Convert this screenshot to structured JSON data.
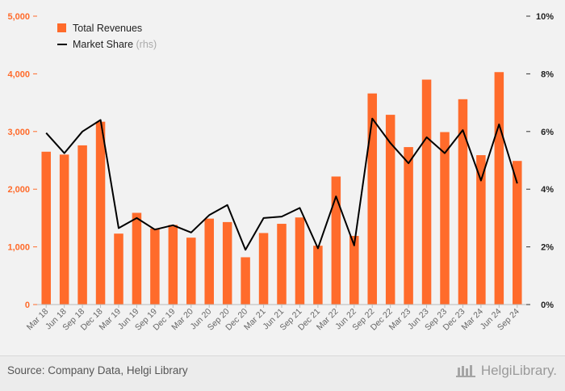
{
  "chart_data": {
    "type": "bar",
    "categories": [
      "Mar 18",
      "Jun 18",
      "Sep 18",
      "Dec 18",
      "Mar 19",
      "Jun 19",
      "Sep 19",
      "Dec 19",
      "Mar 20",
      "Jun 20",
      "Sep 20",
      "Dec 20",
      "Mar 21",
      "Jun 21",
      "Sep 21",
      "Dec 21",
      "Mar 22",
      "Jun 22",
      "Sep 22",
      "Dec 22",
      "Mar 23",
      "Jun 23",
      "Sep 23",
      "Dec 23",
      "Mar 24",
      "Jun 24",
      "Sep 24"
    ],
    "series": [
      {
        "name": "Total Revenues",
        "type": "bar",
        "axis": "left",
        "color": "#ff6b2b",
        "values": [
          2650,
          2600,
          2760,
          3170,
          1230,
          1590,
          1320,
          1380,
          1160,
          1490,
          1430,
          820,
          1240,
          1400,
          1510,
          1020,
          2220,
          1190,
          3660,
          3290,
          2730,
          3900,
          2990,
          3560,
          2590,
          4030,
          2490
        ]
      },
      {
        "name": "Market Share",
        "name_suffix": "(rhs)",
        "type": "line",
        "axis": "right",
        "color": "#000000",
        "values": [
          5.95,
          5.25,
          6.0,
          6.4,
          2.65,
          3.0,
          2.6,
          2.75,
          2.5,
          3.1,
          3.45,
          1.9,
          3.0,
          3.05,
          3.35,
          1.95,
          3.75,
          2.05,
          6.45,
          5.6,
          4.9,
          5.8,
          5.25,
          6.05,
          4.3,
          6.25,
          4.2
        ]
      }
    ],
    "y_left": {
      "min": 0,
      "max": 5000,
      "ticks": [
        0,
        1000,
        2000,
        3000,
        4000,
        5000
      ],
      "tick_labels": [
        "0",
        "1,000",
        "2,000",
        "3,000",
        "4,000",
        "5,000"
      ]
    },
    "y_right": {
      "min": 0,
      "max": 10,
      "ticks": [
        0,
        2,
        4,
        6,
        8,
        10
      ],
      "tick_labels": [
        "0%",
        "2%",
        "4%",
        "6%",
        "8%",
        "10%"
      ]
    },
    "legend_position": "top-left",
    "grid": false
  },
  "footer": {
    "source": "Source: Company Data, Helgi Library",
    "logo_text": "HelgiLibrary."
  }
}
